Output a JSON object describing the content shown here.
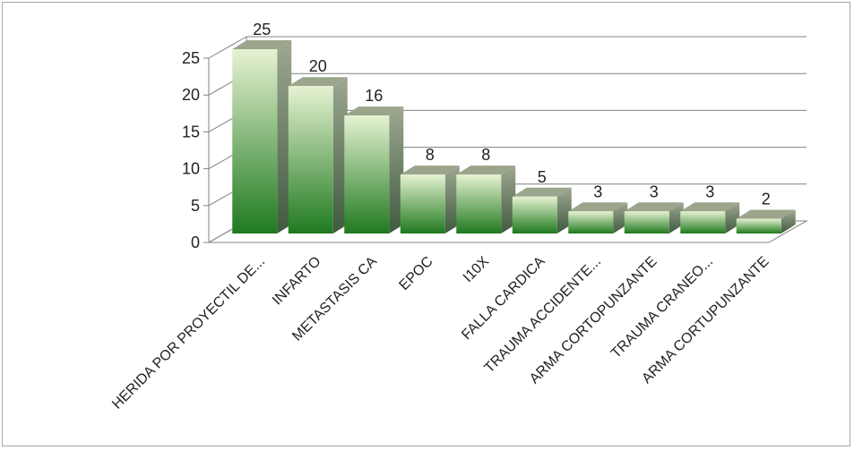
{
  "chart_data": {
    "type": "bar",
    "style": "3d-column",
    "categories": [
      "HERIDA POR PROYECTIL DE...",
      "INFARTO",
      "METASTASIS CA",
      "EPOC",
      "I10X",
      "FALLA CARDICA",
      "TRAUMA ACCIDENTE...",
      "ARMA CORTOPUNZANTE",
      "TRAUMA CRANEO...",
      "ARMA CORTUPUNZANTE"
    ],
    "values": [
      25,
      20,
      16,
      8,
      8,
      5,
      3,
      3,
      3,
      2
    ],
    "ylim": [
      0,
      25
    ],
    "yticks": [
      0,
      5,
      10,
      15,
      20,
      25
    ],
    "grid": true,
    "legend": "none",
    "colors": {
      "bar_light": "#e6f2d2",
      "bar_dark": "#1f7a1f",
      "bar_side_light": "#9ea891",
      "bar_side_dark": "#3f5a3f",
      "bar_top": "#9aa58c",
      "grid": "#808080",
      "axis": "#808080"
    }
  }
}
